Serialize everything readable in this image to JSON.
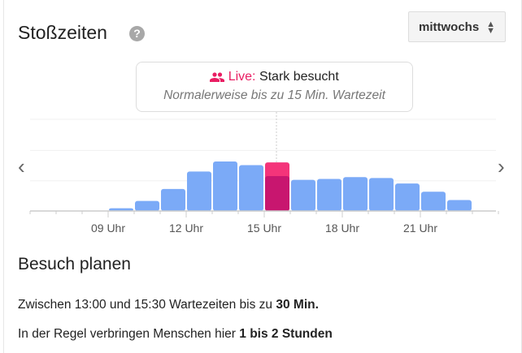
{
  "header": {
    "title": "Stoßzeiten",
    "help_icon": "?",
    "day_select": "mittwochs"
  },
  "live": {
    "label": "Live:",
    "status": "Stark besucht",
    "usual": "Normalerweise bis zu 15 Min. Wartezeit",
    "icon": "people-icon"
  },
  "colors": {
    "usual": "#7baaf7",
    "live": "#f4347a",
    "overlap": "#c8166f"
  },
  "chart_data": {
    "type": "bar",
    "x_ticks": [
      "09 Uhr",
      "12 Uhr",
      "15 Uhr",
      "18 Uhr",
      "21 Uhr"
    ],
    "tick_hours": [
      9,
      12,
      15,
      18,
      21
    ],
    "hours": [
      6,
      7,
      8,
      9,
      10,
      11,
      12,
      13,
      14,
      15,
      16,
      17,
      18,
      19,
      20,
      21,
      22,
      23
    ],
    "values": [
      0,
      0,
      0,
      3,
      11,
      24,
      43,
      54,
      50,
      38,
      34,
      35,
      37,
      36,
      30,
      21,
      12,
      0
    ],
    "live": {
      "hour": 15,
      "value": 53
    },
    "ylim": [
      0,
      100
    ]
  },
  "plan": {
    "title": "Besuch planen",
    "line1": "Zwischen 13:00 und 15:30 Wartezeiten bis zu ",
    "line1_bold": "30 Min.",
    "line2": "In der Regel verbringen Menschen hier ",
    "line2_bold": "1 bis 2 Stunden"
  }
}
